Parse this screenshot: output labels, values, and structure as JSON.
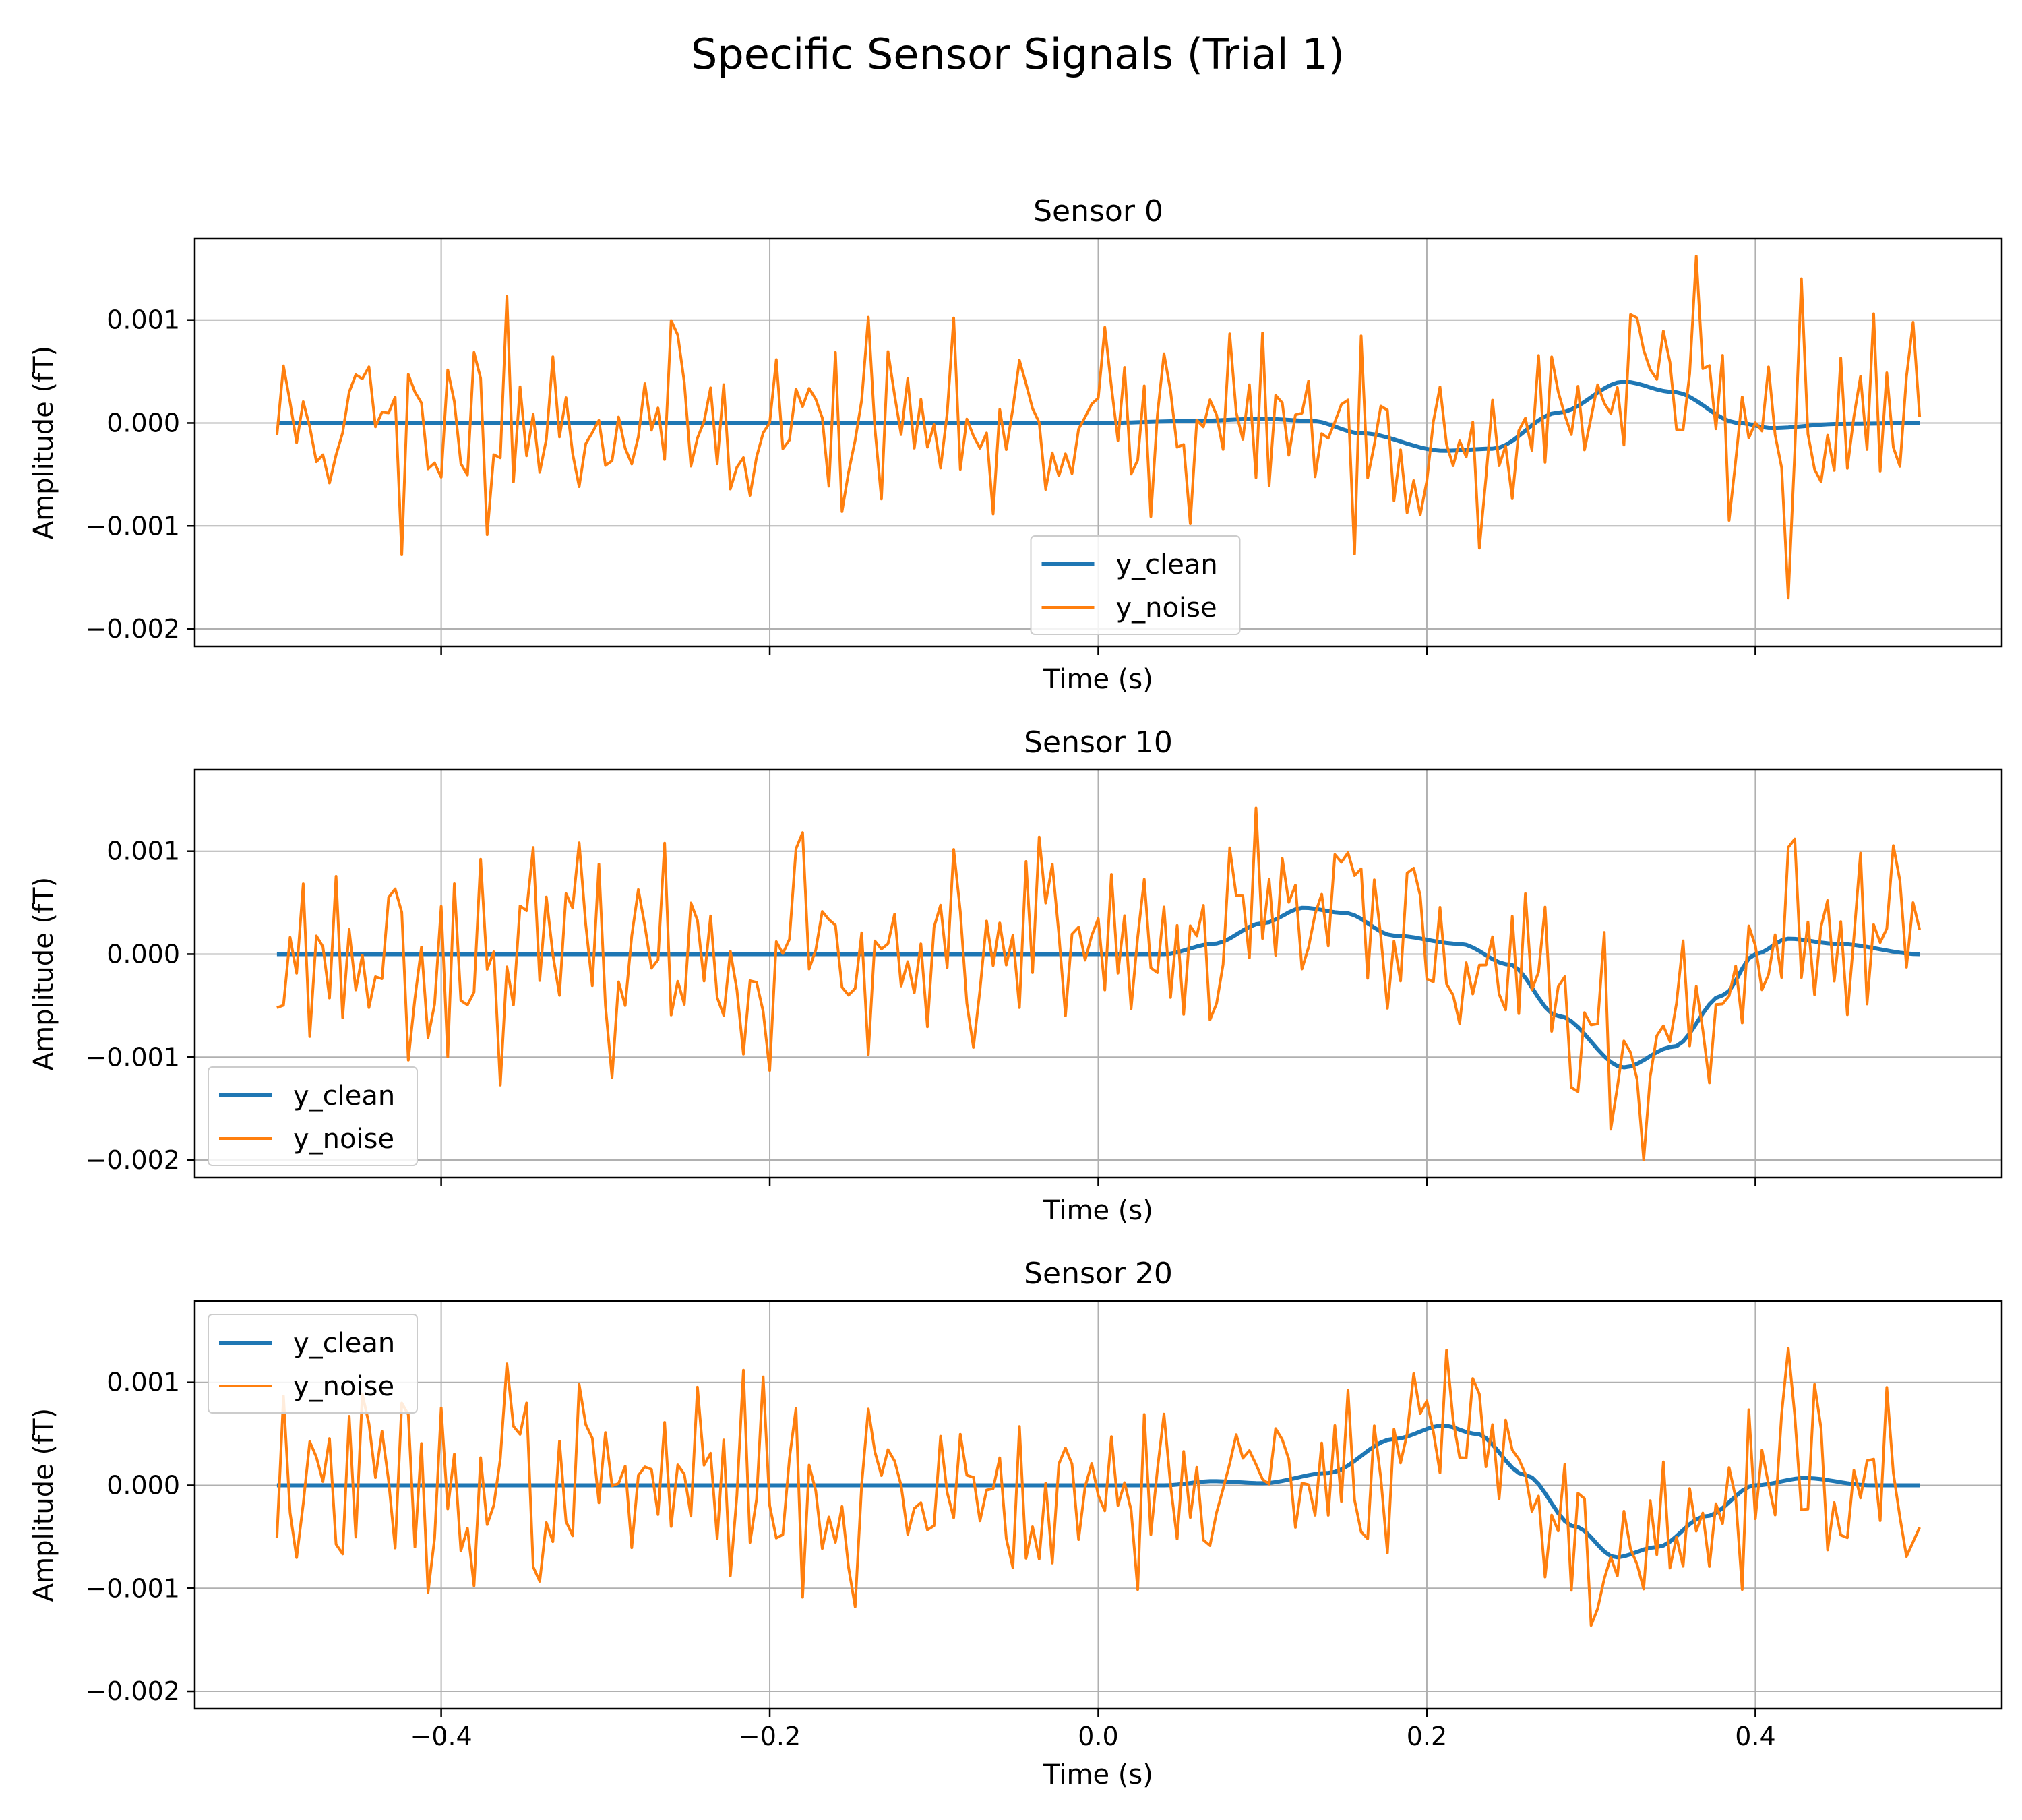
{
  "figure": {
    "title": "Specific Sensor Signals (Trial 1)"
  },
  "colors": {
    "y_clean": "#1f77b4",
    "y_noise": "#ff7f0e",
    "grid": "#b0b0b0"
  },
  "x_ticks": [
    -0.4,
    -0.2,
    0.0,
    0.2,
    0.4
  ],
  "x_tick_labels": [
    "−0.4",
    "−0.2",
    "0.0",
    "0.2",
    "0.4"
  ],
  "y_ticks": [
    0.001,
    0.0,
    -0.001,
    -0.002
  ],
  "y_tick_labels": [
    "0.001",
    "0.000",
    "−0.001",
    "−0.002"
  ],
  "chart_data": [
    {
      "type": "line",
      "title": "Sensor 0",
      "xlabel": "Time (s)",
      "ylabel": "Amplitude  (fT)",
      "xlim": [
        -0.55,
        0.55
      ],
      "ylim": [
        -0.00217,
        0.00179
      ],
      "grid": true,
      "legend_position": "lower-center",
      "clean_anchors": [
        [
          -0.5,
          0
        ],
        [
          0.0,
          0
        ],
        [
          0.06,
          2e-05
        ],
        [
          0.1,
          4e-05
        ],
        [
          0.13,
          2e-05
        ],
        [
          0.16,
          -0.0001
        ],
        [
          0.21,
          -0.00027
        ],
        [
          0.24,
          -0.00025
        ],
        [
          0.28,
          0.0001
        ],
        [
          0.32,
          0.0004
        ],
        [
          0.35,
          0.0003
        ],
        [
          0.39,
          0.0
        ],
        [
          0.41,
          -5e-05
        ],
        [
          0.45,
          -1e-05
        ],
        [
          0.5,
          0
        ]
      ],
      "noise_seed": 11,
      "noise_sd": 0.00043,
      "spikes": [
        [
          0.362,
          0.00162
        ],
        [
          0.422,
          -0.0017
        ],
        [
          0.43,
          0.0014
        ],
        [
          -0.425,
          -0.00128
        ],
        [
          -0.36,
          0.00123
        ]
      ],
      "series": [
        {
          "name": "y_clean",
          "color": "#1f77b4"
        },
        {
          "name": "y_noise",
          "color": "#ff7f0e"
        }
      ]
    },
    {
      "type": "line",
      "title": "Sensor 10",
      "xlabel": "Time (s)",
      "ylabel": "Amplitude  (fT)",
      "xlim": [
        -0.55,
        0.55
      ],
      "ylim": [
        -0.00217,
        0.00179
      ],
      "grid": true,
      "legend_position": "lower-left",
      "clean_anchors": [
        [
          -0.5,
          0
        ],
        [
          0.04,
          0
        ],
        [
          0.07,
          0.0001
        ],
        [
          0.1,
          0.0003
        ],
        [
          0.125,
          0.00045
        ],
        [
          0.15,
          0.0004
        ],
        [
          0.18,
          0.00018
        ],
        [
          0.22,
          0.0001
        ],
        [
          0.25,
          -0.0001
        ],
        [
          0.28,
          -0.0006
        ],
        [
          0.32,
          -0.0011
        ],
        [
          0.35,
          -0.0009
        ],
        [
          0.38,
          -0.0004
        ],
        [
          0.4,
          0.0
        ],
        [
          0.42,
          0.00015
        ],
        [
          0.45,
          0.0001
        ],
        [
          0.5,
          0
        ]
      ],
      "noise_seed": 23,
      "noise_sd": 0.00047,
      "spikes": [
        [
          -0.2,
          -0.00113
        ],
        [
          -0.18,
          0.00118
        ],
        [
          0.095,
          0.00142
        ],
        [
          0.33,
          -0.002
        ],
        [
          0.31,
          -0.0017
        ]
      ],
      "series": [
        {
          "name": "y_clean",
          "color": "#1f77b4"
        },
        {
          "name": "y_noise",
          "color": "#ff7f0e"
        }
      ]
    },
    {
      "type": "line",
      "title": "Sensor 20",
      "xlabel": "Time (s)",
      "ylabel": "Amplitude  (fT)",
      "xlim": [
        -0.55,
        0.55
      ],
      "ylim": [
        -0.00217,
        0.00179
      ],
      "grid": true,
      "legend_position": "upper-left",
      "clean_anchors": [
        [
          -0.5,
          0
        ],
        [
          0.04,
          0
        ],
        [
          0.07,
          4e-05
        ],
        [
          0.1,
          2e-05
        ],
        [
          0.14,
          0.00012
        ],
        [
          0.18,
          0.00045
        ],
        [
          0.21,
          0.00058
        ],
        [
          0.23,
          0.0005
        ],
        [
          0.26,
          0.0001
        ],
        [
          0.29,
          -0.0004
        ],
        [
          0.315,
          -0.0007
        ],
        [
          0.34,
          -0.0006
        ],
        [
          0.37,
          -0.0003
        ],
        [
          0.4,
          0.0
        ],
        [
          0.43,
          7e-05
        ],
        [
          0.47,
          0.0
        ],
        [
          0.5,
          0
        ]
      ],
      "noise_seed": 37,
      "noise_sd": 0.00046,
      "spikes": [
        [
          -0.36,
          0.00118
        ],
        [
          -0.41,
          -0.00104
        ],
        [
          -0.15,
          -0.00118
        ],
        [
          0.21,
          0.00131
        ],
        [
          0.42,
          0.00133
        ],
        [
          0.3,
          -0.00136
        ]
      ],
      "series": [
        {
          "name": "y_clean",
          "color": "#1f77b4"
        },
        {
          "name": "y_noise",
          "color": "#ff7f0e"
        }
      ]
    }
  ]
}
